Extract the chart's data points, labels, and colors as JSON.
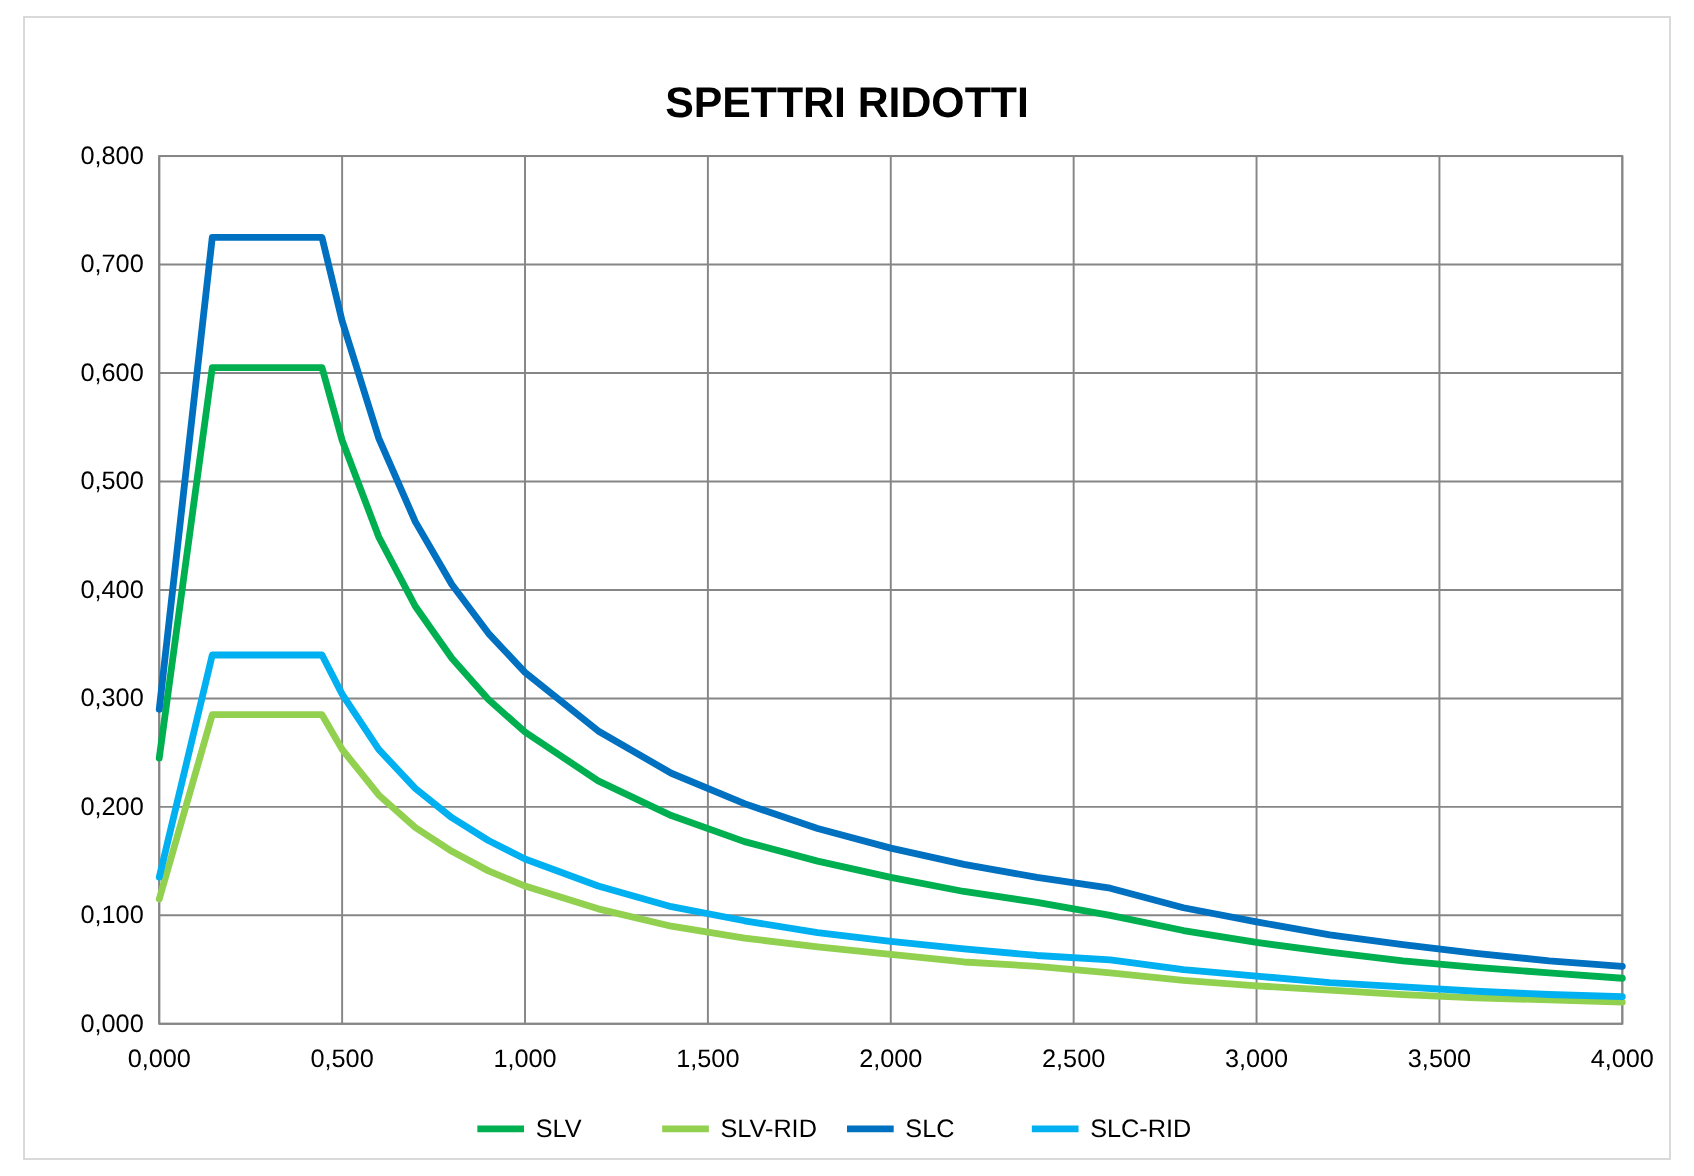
{
  "chart_data": {
    "type": "line",
    "title": "SPETTRI RIDOTTI",
    "x": [
      0,
      0.145,
      0.445,
      0.5,
      0.6,
      0.7,
      0.8,
      0.9,
      1.0,
      1.2,
      1.4,
      1.6,
      1.8,
      2.0,
      2.2,
      2.4,
      2.6,
      2.8,
      3.0,
      3.2,
      3.4,
      3.6,
      3.8,
      4.0
    ],
    "series": [
      {
        "name": "SLV",
        "color": "#00b050",
        "values": [
          0.245,
          0.605,
          0.605,
          0.538,
          0.449,
          0.385,
          0.337,
          0.299,
          0.269,
          0.224,
          0.192,
          0.168,
          0.15,
          0.135,
          0.122,
          0.112,
          0.1,
          0.086,
          0.075,
          0.066,
          0.058,
          0.052,
          0.047,
          0.042
        ]
      },
      {
        "name": "SLV-RID",
        "color": "#92d050",
        "values": [
          0.115,
          0.285,
          0.285,
          0.253,
          0.211,
          0.181,
          0.159,
          0.141,
          0.127,
          0.106,
          0.09,
          0.079,
          0.071,
          0.064,
          0.057,
          0.053,
          0.047,
          0.04,
          0.035,
          0.031,
          0.027,
          0.024,
          0.022,
          0.02
        ]
      },
      {
        "name": "SLC",
        "color": "#0070c0",
        "values": [
          0.29,
          0.725,
          0.725,
          0.648,
          0.54,
          0.463,
          0.405,
          0.36,
          0.324,
          0.27,
          0.231,
          0.203,
          0.18,
          0.162,
          0.147,
          0.135,
          0.125,
          0.107,
          0.094,
          0.082,
          0.073,
          0.065,
          0.058,
          0.053
        ]
      },
      {
        "name": "SLC-RID",
        "color": "#00b0f0",
        "values": [
          0.135,
          0.34,
          0.34,
          0.304,
          0.253,
          0.217,
          0.19,
          0.169,
          0.152,
          0.127,
          0.108,
          0.095,
          0.084,
          0.076,
          0.069,
          0.063,
          0.059,
          0.05,
          0.044,
          0.038,
          0.034,
          0.03,
          0.027,
          0.025
        ]
      }
    ],
    "xlim": [
      0,
      4
    ],
    "xticks": [
      {
        "value": 0,
        "label": "0,000"
      },
      {
        "value": 0.5,
        "label": "0,500"
      },
      {
        "value": 1,
        "label": "1,000"
      },
      {
        "value": 1.5,
        "label": "1,500"
      },
      {
        "value": 2,
        "label": "2,000"
      },
      {
        "value": 2.5,
        "label": "2,500"
      },
      {
        "value": 3,
        "label": "3,000"
      },
      {
        "value": 3.5,
        "label": "3,500"
      },
      {
        "value": 4,
        "label": "4,000"
      }
    ],
    "ylim": [
      0,
      0.8
    ],
    "yticks": [
      {
        "value": 0,
        "label": "0,000"
      },
      {
        "value": 0.1,
        "label": "0,100"
      },
      {
        "value": 0.2,
        "label": "0,200"
      },
      {
        "value": 0.3,
        "label": "0,300"
      },
      {
        "value": 0.4,
        "label": "0,400"
      },
      {
        "value": 0.5,
        "label": "0,500"
      },
      {
        "value": 0.6,
        "label": "0,600"
      },
      {
        "value": 0.7,
        "label": "0,700"
      },
      {
        "value": 0.8,
        "label": "0,800"
      }
    ],
    "grid": true,
    "legend": "bottom",
    "marker": "none",
    "line_style": "solid"
  }
}
